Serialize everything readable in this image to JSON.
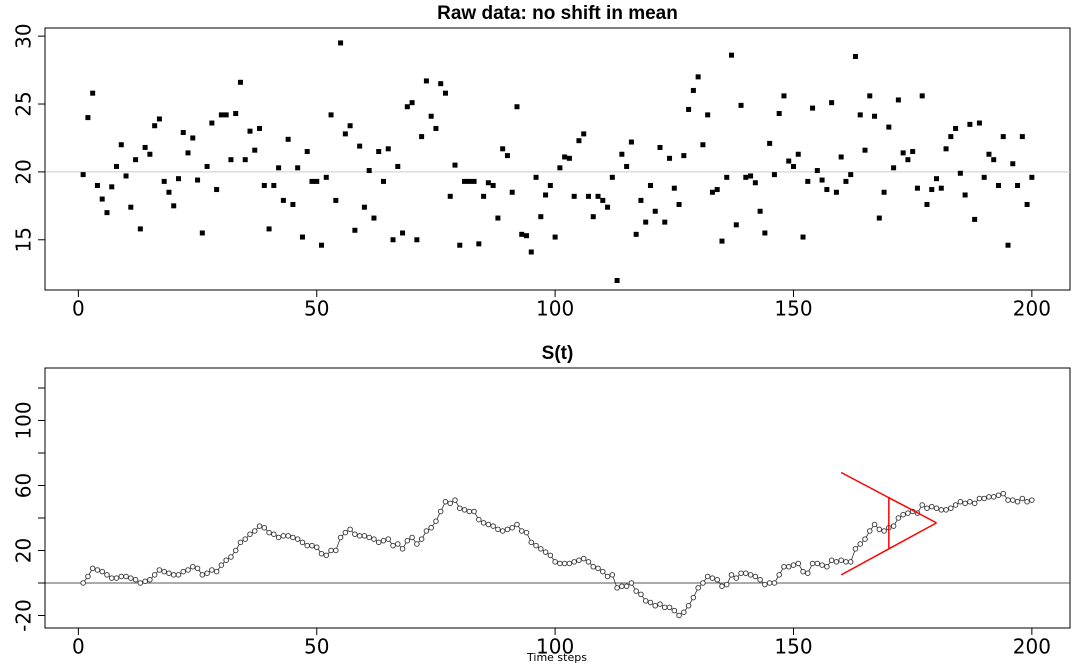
{
  "chart_data": [
    {
      "type": "scatter",
      "title": "Raw data: no shift in mean",
      "color": "#000000",
      "marker": "square",
      "hline": 20,
      "hline_color": "#cccccc",
      "xlim": [
        -7,
        208
      ],
      "xticks": [
        0,
        50,
        100,
        150,
        200
      ],
      "ylim": [
        11.3,
        30.6
      ],
      "yticks": [
        15,
        20,
        25,
        30
      ],
      "x": [
        1,
        2,
        3,
        4,
        5,
        6,
        7,
        8,
        9,
        10,
        11,
        12,
        13,
        14,
        15,
        16,
        17,
        18,
        19,
        20,
        21,
        22,
        23,
        24,
        25,
        26,
        27,
        28,
        29,
        30,
        31,
        32,
        33,
        34,
        35,
        36,
        37,
        38,
        39,
        40,
        41,
        42,
        43,
        44,
        45,
        46,
        47,
        48,
        49,
        50,
        51,
        52,
        53,
        54,
        55,
        56,
        57,
        58,
        59,
        60,
        61,
        62,
        63,
        64,
        65,
        66,
        67,
        68,
        69,
        70,
        71,
        72,
        73,
        74,
        75,
        76,
        77,
        78,
        79,
        80,
        81,
        82,
        83,
        84,
        85,
        86,
        87,
        88,
        89,
        90,
        91,
        92,
        93,
        94,
        95,
        96,
        97,
        98,
        99,
        100,
        101,
        102,
        103,
        104,
        105,
        106,
        107,
        108,
        109,
        110,
        111,
        112,
        113,
        114,
        115,
        116,
        117,
        118,
        119,
        120,
        121,
        122,
        123,
        124,
        125,
        126,
        127,
        128,
        129,
        130,
        131,
        132,
        133,
        134,
        135,
        136,
        137,
        138,
        139,
        140,
        141,
        142,
        143,
        144,
        145,
        146,
        147,
        148,
        149,
        150,
        151,
        152,
        153,
        154,
        155,
        156,
        157,
        158,
        159,
        160,
        161,
        162,
        163,
        164,
        165,
        166,
        167,
        168,
        169,
        170,
        171,
        172,
        173,
        174,
        175,
        176,
        177,
        178,
        179,
        180,
        181,
        182,
        183,
        184,
        185,
        186,
        187,
        188,
        189,
        190,
        191,
        192,
        193,
        194,
        195,
        196,
        197,
        198,
        199,
        200
      ],
      "values": [
        19.8,
        24,
        25.8,
        19,
        18,
        17,
        18.9,
        20.4,
        22,
        19.7,
        17.4,
        20.9,
        15.8,
        21.8,
        21.3,
        23.4,
        23.9,
        19.3,
        18.5,
        17.5,
        19.5,
        22.9,
        21.4,
        22.5,
        19.4,
        15.5,
        20.4,
        23.6,
        18.7,
        24.2,
        24.2,
        20.9,
        24.3,
        26.6,
        20.9,
        23,
        21.6,
        23.2,
        19,
        15.8,
        19,
        20.3,
        17.9,
        22.4,
        17.6,
        20.3,
        15.2,
        21.5,
        19.3,
        19.3,
        14.6,
        19.6,
        24.2,
        17.9,
        29.5,
        22.8,
        23.4,
        15.7,
        21.9,
        17.4,
        20.1,
        16.6,
        21.5,
        19.3,
        21.7,
        15,
        20.4,
        15.5,
        24.8,
        25.1,
        15,
        22.6,
        26.7,
        24.1,
        23.2,
        26.5,
        25.8,
        18.2,
        20.5,
        14.6,
        19.3,
        19.3,
        19.3,
        14.7,
        18.2,
        19.2,
        19,
        16.6,
        21.7,
        21.2,
        18.5,
        24.8,
        15.4,
        15.3,
        14.1,
        19.6,
        16.7,
        18.3,
        19,
        15.2,
        20.3,
        21.1,
        21,
        18.2,
        22.3,
        22.8,
        18.2,
        16.7,
        18.2,
        17.9,
        17.4,
        19.6,
        12,
        21.3,
        20.4,
        22.2,
        15.4,
        17.9,
        16.3,
        19,
        17.1,
        21.8,
        16.3,
        21,
        18.8,
        17.6,
        21.2,
        24.6,
        26,
        27,
        22,
        24.2,
        18.5,
        18.7,
        14.9,
        19.6,
        28.6,
        16.1,
        24.9,
        19.6,
        19.7,
        19.2,
        17.1,
        15.5,
        22.1,
        19.8,
        24.3,
        25.6,
        20.8,
        20.4,
        21.3,
        15.2,
        19.3,
        24.7,
        20.1,
        19.4,
        18.7,
        25.1,
        18.5,
        21.1,
        19.3,
        19.8,
        28.5,
        24.2,
        21.6,
        25.6,
        24.1,
        16.6,
        18.5,
        23.3,
        20.3,
        25.3,
        21.4,
        20.9,
        21.5,
        18.8,
        25.6,
        17.6,
        18.7,
        19.5,
        18.8,
        21.7,
        22.6,
        23.2,
        19.9,
        18.3,
        23.5,
        16.5,
        23.6,
        19.6,
        21.3,
        20.9,
        19,
        22.6,
        14.6,
        20.6,
        19,
        22.6,
        17.6,
        19.6
      ]
    },
    {
      "type": "line",
      "title": "S(t)",
      "x_label": "Time steps",
      "color": "#333333",
      "marker": "open-circle",
      "hline": 0,
      "hline_color": "#555555",
      "xlim": [
        -7,
        208
      ],
      "xticks": [
        0,
        50,
        100,
        150,
        200
      ],
      "ylim": [
        -27.7,
        132.3
      ],
      "yticks": [
        -20,
        20,
        60,
        100
      ],
      "yticks_minor": [
        0,
        40,
        80,
        120
      ],
      "v_mask": {
        "color": "#ff0000",
        "apex": [
          180,
          37
        ],
        "upper": [
          160,
          68
        ],
        "lower": [
          160,
          5
        ],
        "bar_x": 170,
        "bar_y": [
          21,
          53
        ]
      },
      "x": [
        1,
        2,
        3,
        4,
        5,
        6,
        7,
        8,
        9,
        10,
        11,
        12,
        13,
        14,
        15,
        16,
        17,
        18,
        19,
        20,
        21,
        22,
        23,
        24,
        25,
        26,
        27,
        28,
        29,
        30,
        31,
        32,
        33,
        34,
        35,
        36,
        37,
        38,
        39,
        40,
        41,
        42,
        43,
        44,
        45,
        46,
        47,
        48,
        49,
        50,
        51,
        52,
        53,
        54,
        55,
        56,
        57,
        58,
        59,
        60,
        61,
        62,
        63,
        64,
        65,
        66,
        67,
        68,
        69,
        70,
        71,
        72,
        73,
        74,
        75,
        76,
        77,
        78,
        79,
        80,
        81,
        82,
        83,
        84,
        85,
        86,
        87,
        88,
        89,
        90,
        91,
        92,
        93,
        94,
        95,
        96,
        97,
        98,
        99,
        100,
        101,
        102,
        103,
        104,
        105,
        106,
        107,
        108,
        109,
        110,
        111,
        112,
        113,
        114,
        115,
        116,
        117,
        118,
        119,
        120,
        121,
        122,
        123,
        124,
        125,
        126,
        127,
        128,
        129,
        130,
        131,
        132,
        133,
        134,
        135,
        136,
        137,
        138,
        139,
        140,
        141,
        142,
        143,
        144,
        145,
        146,
        147,
        148,
        149,
        150,
        151,
        152,
        153,
        154,
        155,
        156,
        157,
        158,
        159,
        160,
        161,
        162,
        163,
        164,
        165,
        166,
        167,
        168,
        169,
        170,
        171,
        172,
        173,
        174,
        175,
        176,
        177,
        178,
        179,
        180,
        181,
        182,
        183,
        184,
        185,
        186,
        187,
        188,
        189,
        190,
        191,
        192,
        193,
        194,
        195,
        196,
        197,
        198,
        199,
        200
      ],
      "values": [
        0,
        4,
        9,
        8,
        7,
        5,
        3,
        3,
        4,
        4,
        3,
        2,
        0,
        1,
        2,
        5,
        8,
        7,
        6,
        5,
        5,
        7,
        8,
        10,
        9,
        5,
        6,
        8,
        7,
        11,
        14,
        16,
        20,
        25,
        27,
        30,
        32,
        35,
        34,
        31,
        30,
        28,
        29,
        29,
        28,
        27,
        25,
        23,
        23,
        22,
        18,
        17,
        20,
        20,
        28,
        31,
        33,
        30,
        29,
        29,
        28,
        27,
        25,
        26,
        27,
        23,
        24,
        21,
        26,
        28,
        24,
        27,
        32,
        34,
        38,
        44,
        50,
        49,
        51,
        46,
        45,
        44,
        44,
        39,
        37,
        36,
        35,
        33,
        32,
        33,
        34,
        36,
        32,
        31,
        25,
        23,
        21,
        19,
        17,
        13,
        12,
        12,
        12,
        13,
        14,
        15,
        13,
        10,
        9,
        7,
        4,
        5,
        -3,
        -2,
        -2,
        0,
        -5,
        -7,
        -11,
        -12,
        -14,
        -13,
        -15,
        -15,
        -17,
        -20,
        -18,
        -14,
        -9,
        -3,
        0,
        4,
        3,
        2,
        -2,
        -1,
        5,
        3,
        6,
        6,
        5,
        4,
        2,
        -1,
        0,
        0,
        5,
        10,
        10,
        11,
        12,
        7,
        6,
        12,
        12,
        11,
        10,
        14,
        13,
        14,
        13,
        13,
        21,
        24,
        27,
        32,
        36,
        33,
        32,
        34,
        35,
        40,
        42,
        43,
        44,
        43,
        48,
        46,
        47,
        46,
        45,
        45,
        46,
        48,
        50,
        49,
        50,
        49,
        52,
        52,
        53,
        53,
        54,
        55,
        51,
        51,
        50,
        52,
        50,
        51
      ]
    }
  ]
}
